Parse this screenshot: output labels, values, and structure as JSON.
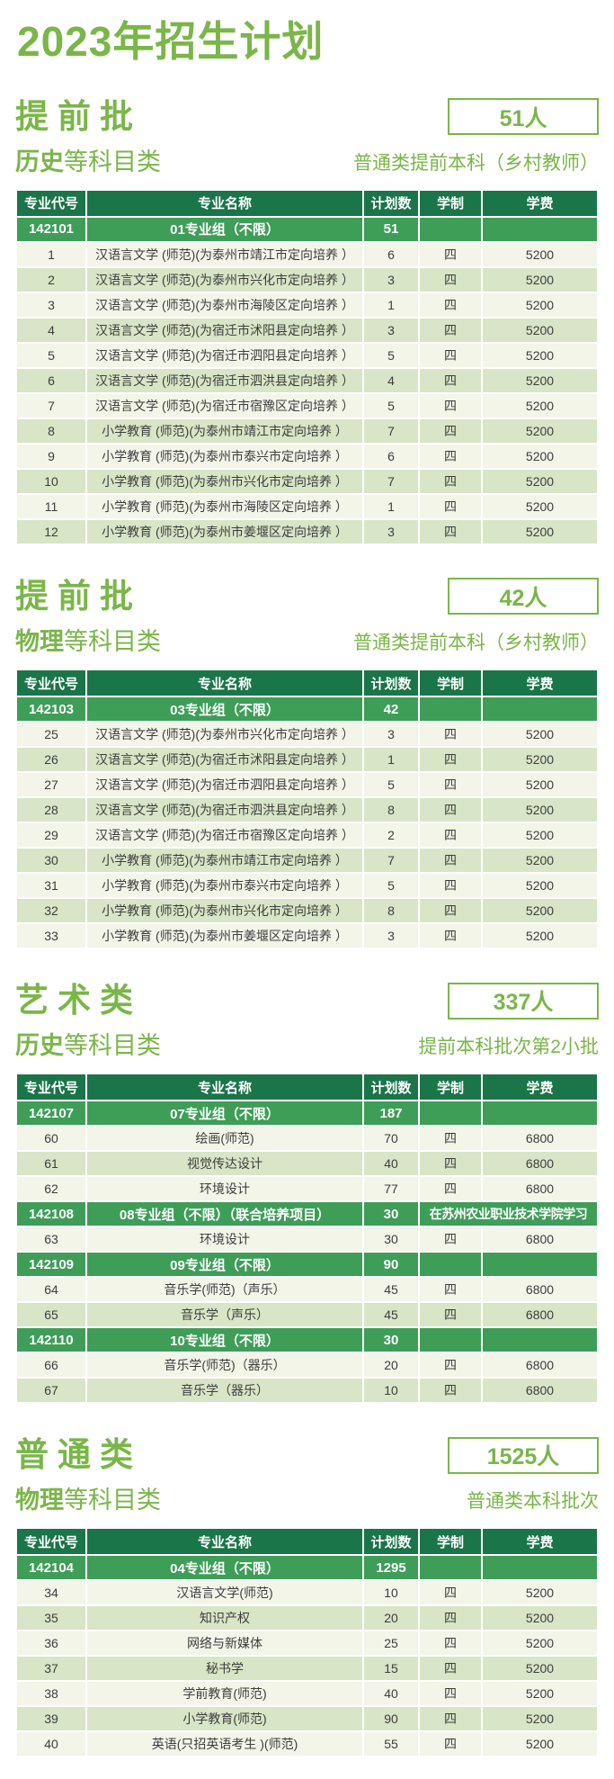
{
  "page_title": "2023年招生计划",
  "colors": {
    "accent_green": "#7ab648",
    "table_header_green": "#1a7548",
    "group_row_green": "#3e9e58",
    "row_light": "#f2f5e8",
    "row_shaded": "#d8e5c6",
    "cell_text": "#3d3d3d"
  },
  "columns": [
    "专业代号",
    "专业名称",
    "计划数",
    "学制",
    "学费"
  ],
  "sections": [
    {
      "title": "提前批",
      "badge": "51人",
      "subject_bold": "历史",
      "subject_rest": "等科目类",
      "note": "普通类提前本科（乡村教师）",
      "rows": [
        {
          "type": "group",
          "code": "142101",
          "name": "01专业组（不限）",
          "plan": "51",
          "extra": ""
        },
        {
          "type": "data",
          "code": "1",
          "name": "汉语言文学 (师范)(为泰州市靖江市定向培养 ）",
          "plan": "6",
          "years": "四",
          "fee": "5200"
        },
        {
          "type": "data",
          "code": "2",
          "name": "汉语言文学 (师范)(为泰州市兴化市定向培养 ）",
          "plan": "3",
          "years": "四",
          "fee": "5200"
        },
        {
          "type": "data",
          "code": "3",
          "name": "汉语言文学 (师范)(为泰州市海陵区定向培养 ）",
          "plan": "1",
          "years": "四",
          "fee": "5200"
        },
        {
          "type": "data",
          "code": "4",
          "name": "汉语言文学 (师范)(为宿迁市沭阳县定向培养 ）",
          "plan": "3",
          "years": "四",
          "fee": "5200"
        },
        {
          "type": "data",
          "code": "5",
          "name": "汉语言文学 (师范)(为宿迁市泗阳县定向培养 ）",
          "plan": "5",
          "years": "四",
          "fee": "5200"
        },
        {
          "type": "data",
          "code": "6",
          "name": "汉语言文学 (师范)(为宿迁市泗洪县定向培养 ）",
          "plan": "4",
          "years": "四",
          "fee": "5200"
        },
        {
          "type": "data",
          "code": "7",
          "name": "汉语言文学 (师范)(为宿迁市宿豫区定向培养 ）",
          "plan": "5",
          "years": "四",
          "fee": "5200"
        },
        {
          "type": "data",
          "code": "8",
          "name": "小学教育 (师范)(为泰州市靖江市定向培养 ）",
          "plan": "7",
          "years": "四",
          "fee": "5200"
        },
        {
          "type": "data",
          "code": "9",
          "name": "小学教育 (师范)(为泰州市泰兴市定向培养 ）",
          "plan": "6",
          "years": "四",
          "fee": "5200"
        },
        {
          "type": "data",
          "code": "10",
          "name": "小学教育 (师范)(为泰州市兴化市定向培养 ）",
          "plan": "7",
          "years": "四",
          "fee": "5200"
        },
        {
          "type": "data",
          "code": "11",
          "name": "小学教育 (师范)(为泰州市海陵区定向培养 ）",
          "plan": "1",
          "years": "四",
          "fee": "5200"
        },
        {
          "type": "data",
          "code": "12",
          "name": "小学教育 (师范)(为泰州市姜堰区定向培养 ）",
          "plan": "3",
          "years": "四",
          "fee": "5200"
        }
      ]
    },
    {
      "title": "提前批",
      "badge": "42人",
      "subject_bold": "物理",
      "subject_rest": "等科目类",
      "note": "普通类提前本科（乡村教师）",
      "rows": [
        {
          "type": "group",
          "code": "142103",
          "name": "03专业组（不限）",
          "plan": "42",
          "extra": ""
        },
        {
          "type": "data",
          "code": "25",
          "name": "汉语言文学 (师范)(为泰州市兴化市定向培养 ）",
          "plan": "3",
          "years": "四",
          "fee": "5200"
        },
        {
          "type": "data",
          "code": "26",
          "name": "汉语言文学 (师范)(为宿迁市沭阳县定向培养 ）",
          "plan": "1",
          "years": "四",
          "fee": "5200"
        },
        {
          "type": "data",
          "code": "27",
          "name": "汉语言文学 (师范)(为宿迁市泗阳县定向培养 ）",
          "plan": "5",
          "years": "四",
          "fee": "5200"
        },
        {
          "type": "data",
          "code": "28",
          "name": "汉语言文学 (师范)(为宿迁市泗洪县定向培养 ）",
          "plan": "8",
          "years": "四",
          "fee": "5200"
        },
        {
          "type": "data",
          "code": "29",
          "name": "汉语言文学 (师范)(为宿迁市宿豫区定向培养 ）",
          "plan": "2",
          "years": "四",
          "fee": "5200"
        },
        {
          "type": "data",
          "code": "30",
          "name": "小学教育 (师范)(为泰州市靖江市定向培养 ）",
          "plan": "7",
          "years": "四",
          "fee": "5200"
        },
        {
          "type": "data",
          "code": "31",
          "name": "小学教育 (师范)(为泰州市泰兴市定向培养 ）",
          "plan": "5",
          "years": "四",
          "fee": "5200"
        },
        {
          "type": "data",
          "code": "32",
          "name": "小学教育 (师范)(为泰州市兴化市定向培养 ）",
          "plan": "8",
          "years": "四",
          "fee": "5200"
        },
        {
          "type": "data",
          "code": "33",
          "name": "小学教育 (师范)(为泰州市姜堰区定向培养 ）",
          "plan": "3",
          "years": "四",
          "fee": "5200"
        }
      ]
    },
    {
      "title": "艺术类",
      "badge": "337人",
      "subject_bold": "历史",
      "subject_rest": "等科目类",
      "note": "提前本科批次第2小批",
      "rows": [
        {
          "type": "group",
          "code": "142107",
          "name": "07专业组（不限）",
          "plan": "187",
          "extra": ""
        },
        {
          "type": "data",
          "code": "60",
          "name": "绘画(师范)",
          "plan": "70",
          "years": "四",
          "fee": "6800"
        },
        {
          "type": "data",
          "code": "61",
          "name": "视觉传达设计",
          "plan": "40",
          "years": "四",
          "fee": "6800"
        },
        {
          "type": "data",
          "code": "62",
          "name": "环境设计",
          "plan": "77",
          "years": "四",
          "fee": "6800"
        },
        {
          "type": "group",
          "code": "142108",
          "name": "08专业组（不限）（联合培养项目）",
          "plan": "30",
          "extra": "在苏州农业职业技术学院学习"
        },
        {
          "type": "data",
          "code": "63",
          "name": "环境设计",
          "plan": "30",
          "years": "四",
          "fee": "6800"
        },
        {
          "type": "group",
          "code": "142109",
          "name": "09专业组（不限）",
          "plan": "90",
          "extra": ""
        },
        {
          "type": "data",
          "code": "64",
          "name": "音乐学(师范)（声乐）",
          "plan": "45",
          "years": "四",
          "fee": "6800"
        },
        {
          "type": "data",
          "code": "65",
          "name": "音乐学（声乐）",
          "plan": "45",
          "years": "四",
          "fee": "6800"
        },
        {
          "type": "group",
          "code": "142110",
          "name": "10专业组（不限）",
          "plan": "30",
          "extra": ""
        },
        {
          "type": "data",
          "code": "66",
          "name": "音乐学(师范)（器乐）",
          "plan": "20",
          "years": "四",
          "fee": "6800"
        },
        {
          "type": "data",
          "code": "67",
          "name": "音乐学（器乐）",
          "plan": "10",
          "years": "四",
          "fee": "6800"
        }
      ]
    },
    {
      "title": "普通类",
      "badge": "1525人",
      "subject_bold": "物理",
      "subject_rest": "等科目类",
      "note": "普通类本科批次",
      "rows": [
        {
          "type": "group",
          "code": "142104",
          "name": "04专业组（不限）",
          "plan": "1295",
          "extra": ""
        },
        {
          "type": "data",
          "code": "34",
          "name": "汉语言文学(师范)",
          "plan": "10",
          "years": "四",
          "fee": "5200"
        },
        {
          "type": "data",
          "code": "35",
          "name": "知识产权",
          "plan": "20",
          "years": "四",
          "fee": "5200"
        },
        {
          "type": "data",
          "code": "36",
          "name": "网络与新媒体",
          "plan": "25",
          "years": "四",
          "fee": "5200"
        },
        {
          "type": "data",
          "code": "37",
          "name": "秘书学",
          "plan": "15",
          "years": "四",
          "fee": "5200"
        },
        {
          "type": "data",
          "code": "38",
          "name": "学前教育(师范)",
          "plan": "40",
          "years": "四",
          "fee": "5200"
        },
        {
          "type": "data",
          "code": "39",
          "name": "小学教育(师范)",
          "plan": "90",
          "years": "四",
          "fee": "5200"
        },
        {
          "type": "data",
          "code": "40",
          "name": "英语(只招英语考生 )(师范)",
          "plan": "55",
          "years": "四",
          "fee": "5200"
        }
      ]
    }
  ]
}
